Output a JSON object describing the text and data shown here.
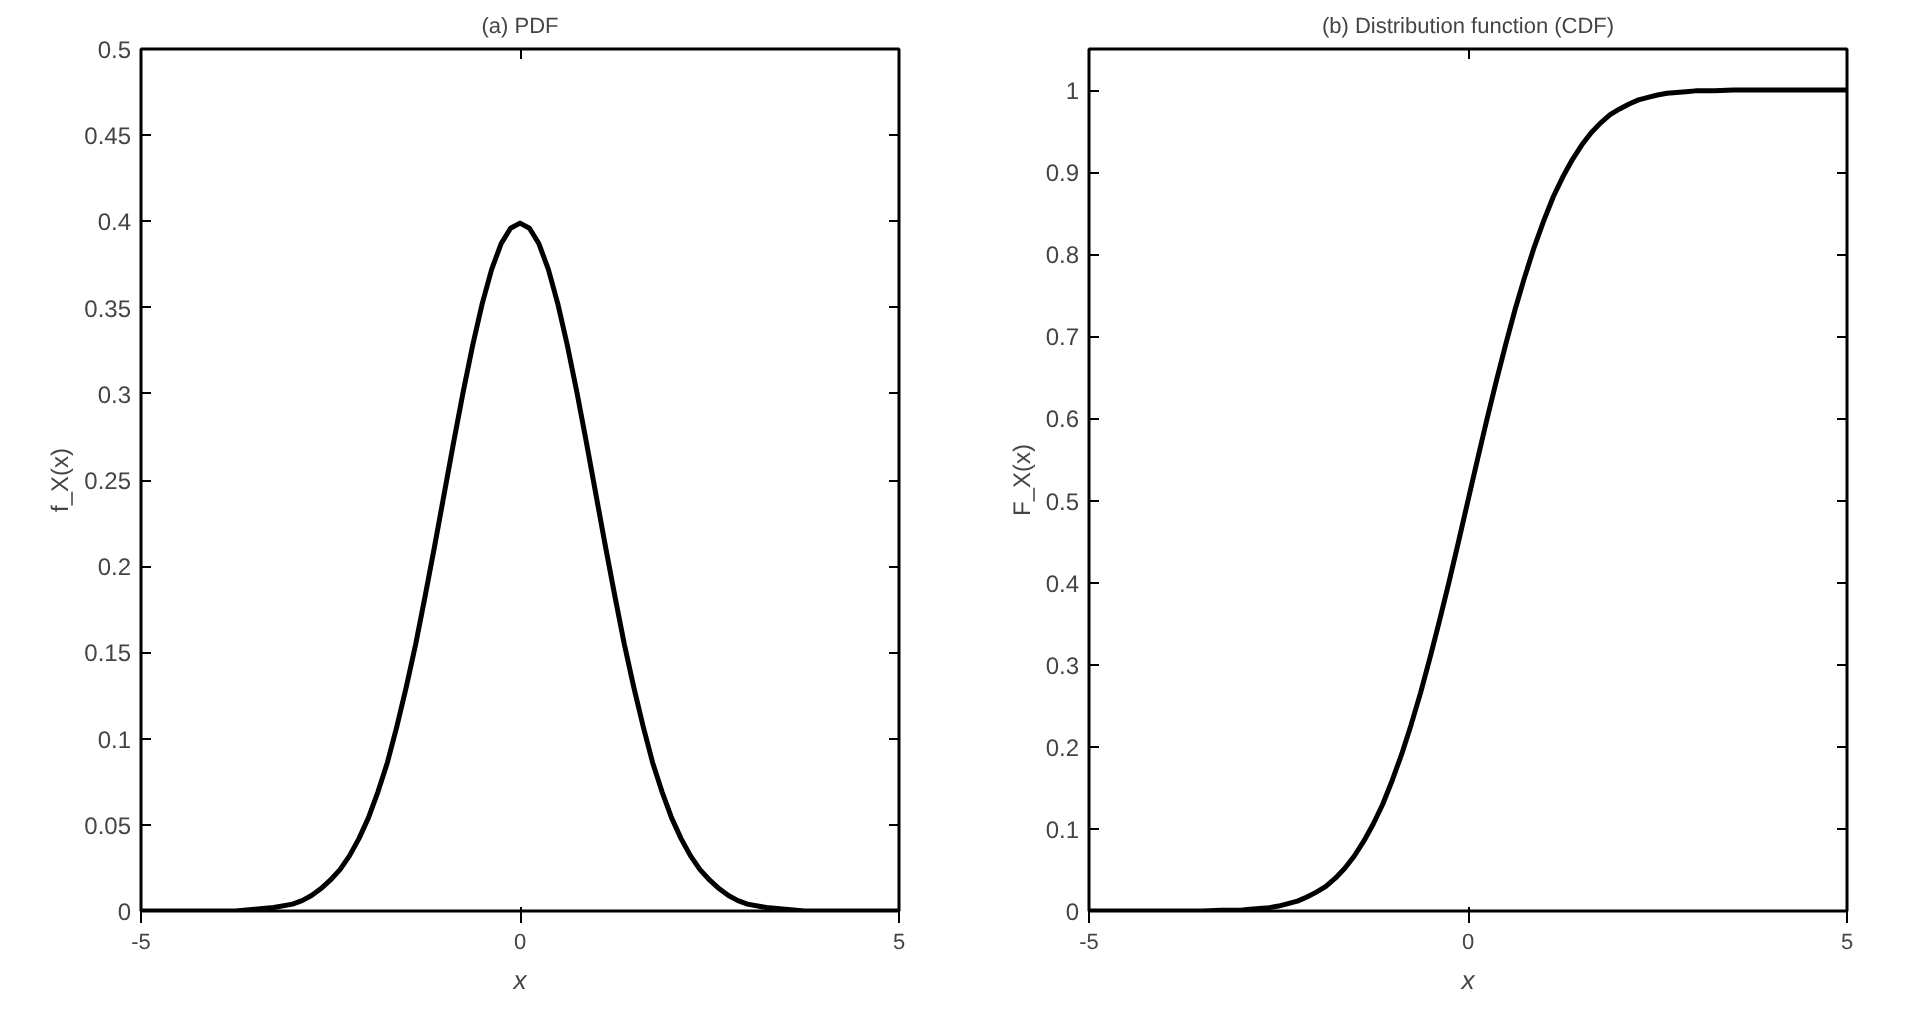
{
  "chart_data": [
    {
      "type": "line",
      "title": "(a) PDF",
      "xlabel": "x",
      "ylabel": "f_X(x)",
      "xlim": [
        -5,
        5
      ],
      "xticks": [
        -5,
        0,
        5
      ],
      "ylim": [
        0,
        0.5
      ],
      "yticks": [
        0,
        0.05,
        0.1,
        0.15,
        0.2,
        0.25,
        0.3,
        0.35,
        0.4,
        0.45,
        0.5
      ],
      "x": [
        -5,
        -4.5,
        -4,
        -3.75,
        -3.5,
        -3.25,
        -3,
        -2.875,
        -2.75,
        -2.625,
        -2.5,
        -2.375,
        -2.25,
        -2.125,
        -2,
        -1.875,
        -1.75,
        -1.625,
        -1.5,
        -1.375,
        -1.25,
        -1.125,
        -1,
        -0.875,
        -0.75,
        -0.625,
        -0.5,
        -0.375,
        -0.25,
        -0.125,
        0,
        0.125,
        0.25,
        0.375,
        0.5,
        0.625,
        0.75,
        0.875,
        1,
        1.125,
        1.25,
        1.375,
        1.5,
        1.625,
        1.75,
        1.875,
        2,
        2.125,
        2.25,
        2.375,
        2.5,
        2.625,
        2.75,
        2.875,
        3,
        3.25,
        3.5,
        3.75,
        4,
        4.5,
        5
      ],
      "series": [
        {
          "color": "#000000",
          "values": [
            0,
            0,
            0,
            0,
            0.001,
            0.002,
            0.004,
            0.006,
            0.009,
            0.013,
            0.018,
            0.024,
            0.032,
            0.042,
            0.054,
            0.069,
            0.086,
            0.107,
            0.13,
            0.155,
            0.183,
            0.212,
            0.242,
            0.272,
            0.301,
            0.328,
            0.352,
            0.372,
            0.387,
            0.396,
            0.399,
            0.396,
            0.387,
            0.372,
            0.352,
            0.328,
            0.301,
            0.272,
            0.242,
            0.212,
            0.183,
            0.155,
            0.13,
            0.107,
            0.086,
            0.069,
            0.054,
            0.042,
            0.032,
            0.024,
            0.018,
            0.013,
            0.009,
            0.006,
            0.004,
            0.002,
            0.001,
            0,
            0,
            0,
            0
          ]
        }
      ]
    },
    {
      "type": "line",
      "title": "(b) Distribution function (CDF)",
      "xlabel": "x",
      "ylabel": "F_X(x)",
      "xlim": [
        -5,
        5
      ],
      "xticks": [
        -5,
        0,
        5
      ],
      "ylim": [
        0,
        1.05
      ],
      "yticks": [
        0,
        0.1,
        0.2,
        0.3,
        0.4,
        0.5,
        0.6,
        0.7,
        0.8,
        0.9,
        1
      ],
      "x": [
        -5,
        -4.5,
        -4,
        -3.75,
        -3.5,
        -3.25,
        -3,
        -2.875,
        -2.75,
        -2.625,
        -2.5,
        -2.375,
        -2.25,
        -2.125,
        -2,
        -1.875,
        -1.75,
        -1.625,
        -1.5,
        -1.375,
        -1.25,
        -1.125,
        -1,
        -0.875,
        -0.75,
        -0.625,
        -0.5,
        -0.375,
        -0.25,
        -0.125,
        0,
        0.125,
        0.25,
        0.375,
        0.5,
        0.625,
        0.75,
        0.875,
        1,
        1.125,
        1.25,
        1.375,
        1.5,
        1.625,
        1.75,
        1.875,
        2,
        2.125,
        2.25,
        2.375,
        2.5,
        2.625,
        2.75,
        2.875,
        3,
        3.25,
        3.5,
        3.75,
        4,
        4.5,
        5
      ],
      "series": [
        {
          "color": "#000000",
          "values": [
            0,
            0,
            0,
            0,
            0,
            0.001,
            0.001,
            0.002,
            0.003,
            0.004,
            0.006,
            0.009,
            0.012,
            0.017,
            0.023,
            0.03,
            0.04,
            0.052,
            0.067,
            0.085,
            0.106,
            0.13,
            0.159,
            0.191,
            0.227,
            0.266,
            0.309,
            0.354,
            0.401,
            0.45,
            0.5,
            0.55,
            0.599,
            0.646,
            0.691,
            0.734,
            0.773,
            0.809,
            0.841,
            0.87,
            0.894,
            0.915,
            0.933,
            0.948,
            0.96,
            0.97,
            0.977,
            0.983,
            0.988,
            0.991,
            0.994,
            0.996,
            0.997,
            0.998,
            0.999,
            0.999,
            1,
            1,
            1,
            1,
            1
          ]
        }
      ]
    }
  ]
}
